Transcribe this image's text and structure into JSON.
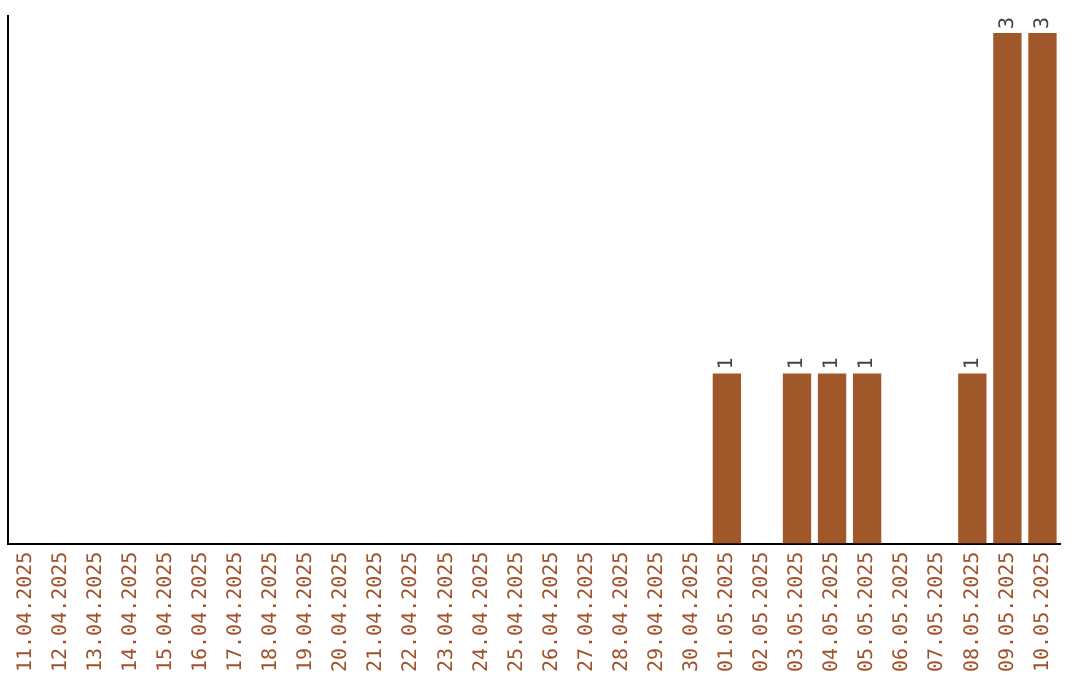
{
  "chart_data": {
    "type": "bar",
    "categories": [
      "11.04.2025",
      "12.04.2025",
      "13.04.2025",
      "14.04.2025",
      "15.04.2025",
      "16.04.2025",
      "17.04.2025",
      "18.04.2025",
      "19.04.2025",
      "20.04.2025",
      "21.04.2025",
      "22.04.2025",
      "23.04.2025",
      "24.04.2025",
      "25.04.2025",
      "26.04.2025",
      "27.04.2025",
      "28.04.2025",
      "29.04.2025",
      "30.04.2025",
      "01.05.2025",
      "02.05.2025",
      "03.05.2025",
      "04.05.2025",
      "05.05.2025",
      "06.05.2025",
      "07.05.2025",
      "08.05.2025",
      "09.05.2025",
      "10.05.2025"
    ],
    "values": [
      null,
      null,
      null,
      null,
      null,
      null,
      null,
      null,
      null,
      null,
      null,
      null,
      null,
      null,
      null,
      null,
      null,
      null,
      null,
      null,
      1,
      null,
      1,
      1,
      1,
      null,
      null,
      1,
      3,
      3
    ],
    "color": "#a0582a",
    "ylim": [
      0,
      3.1
    ],
    "data_labels": true,
    "grid": false,
    "legend": false,
    "tick_labels": "x"
  }
}
